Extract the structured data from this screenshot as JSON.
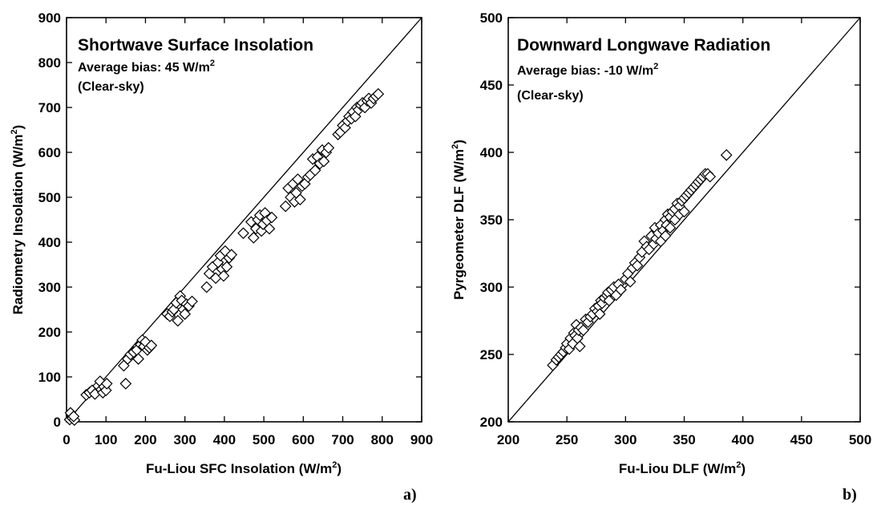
{
  "chart_data": [
    {
      "type": "scatter",
      "panel_label": "a)",
      "title": "Shortwave Surface Insolation",
      "bias_text": "Average bias:  45 W/m",
      "bias_sup": "2",
      "condition": "(Clear-sky)",
      "xlabel": "Fu-Liou SFC Insolation (W/m",
      "xlabel_sup": "2",
      "xlabel_tail": ")",
      "ylabel": "Radiometry Insolation (W/m",
      "ylabel_sup": "2",
      "ylabel_tail": ")",
      "xlim": [
        0,
        900
      ],
      "ylim": [
        0,
        900
      ],
      "xticks": [
        "0",
        "100",
        "200",
        "300",
        "400",
        "500",
        "600",
        "700",
        "800",
        "900"
      ],
      "yticks": [
        "0",
        "100",
        "200",
        "300",
        "400",
        "500",
        "600",
        "700",
        "800",
        "900"
      ],
      "xtick_values": [
        0,
        100,
        200,
        300,
        400,
        500,
        600,
        700,
        800,
        900
      ],
      "ytick_values": [
        0,
        100,
        200,
        300,
        400,
        500,
        600,
        700,
        800,
        900
      ],
      "grid": false,
      "reference_line": "1:1",
      "marker": "open-diamond",
      "points": [
        [
          8,
          5
        ],
        [
          12,
          15
        ],
        [
          15,
          8
        ],
        [
          20,
          4
        ],
        [
          10,
          20
        ],
        [
          18,
          12
        ],
        [
          50,
          60
        ],
        [
          58,
          65
        ],
        [
          65,
          70
        ],
        [
          72,
          62
        ],
        [
          80,
          80
        ],
        [
          85,
          90
        ],
        [
          88,
          72
        ],
        [
          92,
          65
        ],
        [
          95,
          78
        ],
        [
          100,
          70
        ],
        [
          102,
          85
        ],
        [
          145,
          125
        ],
        [
          150,
          85
        ],
        [
          155,
          140
        ],
        [
          162,
          150
        ],
        [
          170,
          155
        ],
        [
          178,
          160
        ],
        [
          182,
          140
        ],
        [
          188,
          172
        ],
        [
          192,
          182
        ],
        [
          196,
          168
        ],
        [
          200,
          178
        ],
        [
          205,
          160
        ],
        [
          210,
          165
        ],
        [
          215,
          170
        ],
        [
          255,
          240
        ],
        [
          262,
          235
        ],
        [
          268,
          245
        ],
        [
          272,
          250
        ],
        [
          278,
          265
        ],
        [
          282,
          225
        ],
        [
          288,
          280
        ],
        [
          292,
          270
        ],
        [
          296,
          250
        ],
        [
          300,
          240
        ],
        [
          304,
          262
        ],
        [
          310,
          258
        ],
        [
          318,
          268
        ],
        [
          355,
          300
        ],
        [
          362,
          330
        ],
        [
          370,
          345
        ],
        [
          378,
          320
        ],
        [
          384,
          355
        ],
        [
          390,
          370
        ],
        [
          394,
          340
        ],
        [
          398,
          325
        ],
        [
          402,
          380
        ],
        [
          406,
          345
        ],
        [
          412,
          365
        ],
        [
          418,
          372
        ],
        [
          448,
          420
        ],
        [
          468,
          445
        ],
        [
          474,
          410
        ],
        [
          480,
          430
        ],
        [
          485,
          450
        ],
        [
          490,
          460
        ],
        [
          494,
          425
        ],
        [
          498,
          440
        ],
        [
          503,
          465
        ],
        [
          508,
          448
        ],
        [
          514,
          430
        ],
        [
          520,
          455
        ],
        [
          555,
          480
        ],
        [
          562,
          520
        ],
        [
          568,
          500
        ],
        [
          574,
          530
        ],
        [
          578,
          490
        ],
        [
          582,
          510
        ],
        [
          586,
          540
        ],
        [
          592,
          495
        ],
        [
          597,
          525
        ],
        [
          604,
          530
        ],
        [
          612,
          545
        ],
        [
          618,
          550
        ],
        [
          624,
          585
        ],
        [
          630,
          560
        ],
        [
          636,
          590
        ],
        [
          642,
          575
        ],
        [
          648,
          605
        ],
        [
          652,
          580
        ],
        [
          658,
          600
        ],
        [
          664,
          610
        ],
        [
          688,
          640
        ],
        [
          694,
          645
        ],
        [
          700,
          660
        ],
        [
          706,
          655
        ],
        [
          712,
          670
        ],
        [
          716,
          680
        ],
        [
          722,
          675
        ],
        [
          726,
          690
        ],
        [
          732,
          680
        ],
        [
          736,
          700
        ],
        [
          740,
          695
        ],
        [
          746,
          705
        ],
        [
          750,
          710
        ],
        [
          756,
          700
        ],
        [
          762,
          715
        ],
        [
          766,
          720
        ],
        [
          772,
          710
        ],
        [
          778,
          720
        ],
        [
          784,
          725
        ],
        [
          790,
          730
        ]
      ]
    },
    {
      "type": "scatter",
      "panel_label": "b)",
      "title": "Downward Longwave Radiation",
      "bias_text": "Average bias:  -10 W/m",
      "bias_sup": "2",
      "condition": "(Clear-sky)",
      "xlabel": "Fu-Liou DLF (W/m",
      "xlabel_sup": "2",
      "xlabel_tail": ")",
      "ylabel": "Pyrgeometer DLF (W/m",
      "ylabel_sup": "2",
      "ylabel_tail": ")",
      "xlim": [
        200,
        500
      ],
      "ylim": [
        200,
        500
      ],
      "xticks": [
        "200",
        "250",
        "300",
        "350",
        "400",
        "450",
        "500"
      ],
      "yticks": [
        "200",
        "250",
        "300",
        "350",
        "400",
        "450",
        "500"
      ],
      "xtick_values": [
        200,
        250,
        300,
        350,
        400,
        450,
        500
      ],
      "ytick_values": [
        200,
        250,
        300,
        350,
        400,
        450,
        500
      ],
      "grid": false,
      "reference_line": "1:1",
      "marker": "open-diamond",
      "points": [
        [
          238,
          242
        ],
        [
          241,
          246
        ],
        [
          243,
          248
        ],
        [
          245,
          250
        ],
        [
          247,
          252
        ],
        [
          249,
          255
        ],
        [
          250,
          258
        ],
        [
          252,
          254
        ],
        [
          253,
          262
        ],
        [
          255,
          258
        ],
        [
          256,
          266
        ],
        [
          257,
          264
        ],
        [
          258,
          272
        ],
        [
          259,
          262
        ],
        [
          260,
          268
        ],
        [
          261,
          256
        ],
        [
          262,
          270
        ],
        [
          264,
          268
        ],
        [
          266,
          276
        ],
        [
          268,
          274
        ],
        [
          270,
          278
        ],
        [
          272,
          280
        ],
        [
          274,
          284
        ],
        [
          276,
          282
        ],
        [
          277,
          286
        ],
        [
          278,
          280
        ],
        [
          279,
          290
        ],
        [
          280,
          288
        ],
        [
          282,
          292
        ],
        [
          284,
          294
        ],
        [
          285,
          296
        ],
        [
          286,
          290
        ],
        [
          288,
          298
        ],
        [
          290,
          300
        ],
        [
          292,
          294
        ],
        [
          294,
          302
        ],
        [
          296,
          298
        ],
        [
          300,
          306
        ],
        [
          302,
          310
        ],
        [
          304,
          304
        ],
        [
          306,
          314
        ],
        [
          308,
          318
        ],
        [
          310,
          316
        ],
        [
          312,
          322
        ],
        [
          314,
          326
        ],
        [
          316,
          334
        ],
        [
          318,
          330
        ],
        [
          320,
          328
        ],
        [
          322,
          338
        ],
        [
          324,
          332
        ],
        [
          325,
          344
        ],
        [
          326,
          336
        ],
        [
          328,
          340
        ],
        [
          330,
          346
        ],
        [
          332,
          342
        ],
        [
          334,
          350
        ],
        [
          335,
          346
        ],
        [
          336,
          354
        ],
        [
          338,
          352
        ],
        [
          340,
          356
        ],
        [
          342,
          358
        ],
        [
          344,
          362
        ],
        [
          346,
          360
        ],
        [
          348,
          364
        ],
        [
          350,
          366
        ],
        [
          352,
          368
        ],
        [
          354,
          370
        ],
        [
          356,
          372
        ],
        [
          358,
          374
        ],
        [
          360,
          376
        ],
        [
          362,
          378
        ],
        [
          364,
          380
        ],
        [
          366,
          382
        ],
        [
          368,
          384
        ],
        [
          370,
          384
        ],
        [
          372,
          382
        ],
        [
          330,
          334
        ],
        [
          334,
          338
        ],
        [
          338,
          344
        ],
        [
          342,
          350
        ],
        [
          346,
          354
        ],
        [
          350,
          356
        ],
        [
          386,
          398
        ]
      ]
    }
  ]
}
